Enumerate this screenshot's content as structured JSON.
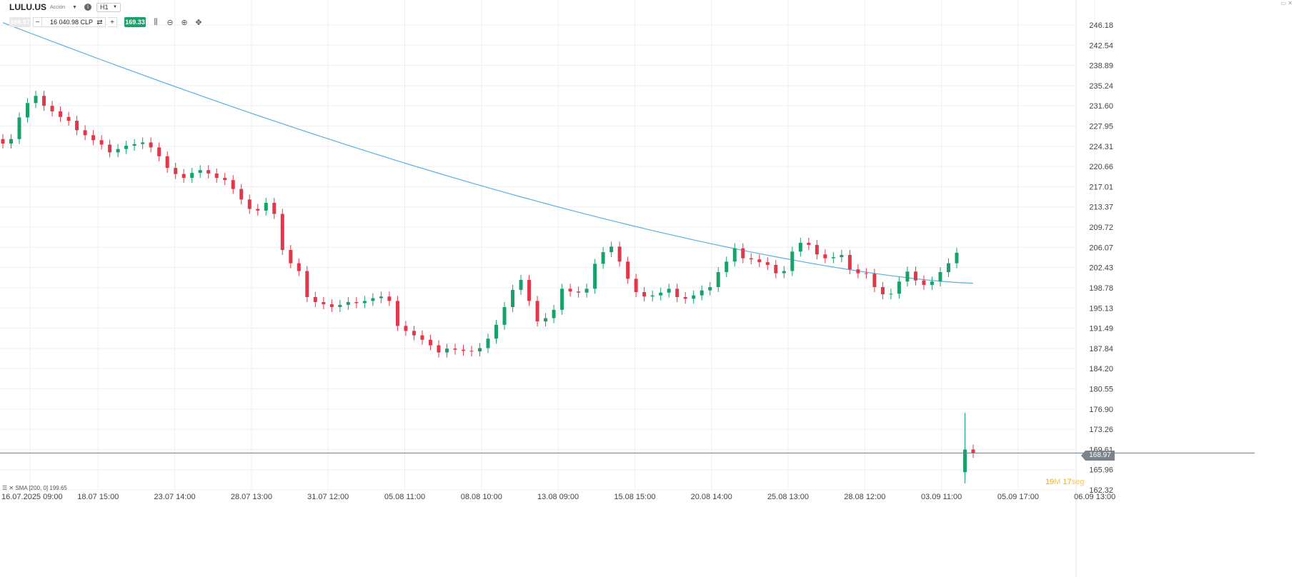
{
  "header": {
    "symbol": "LULU.US",
    "asset_type": "Acción",
    "timeframe": "H1",
    "sell_price": "168.97",
    "amount": "16 040.98 CLP",
    "buy_price": "169.33",
    "minus_label": "−",
    "plus_label": "+"
  },
  "indicator": {
    "legend": "SMA [200, 0] 199.65"
  },
  "countdown": {
    "minutes": "19",
    "minutes_unit": "M",
    "seconds": "17",
    "seconds_unit": "seg"
  },
  "current_price_tag": "168.97",
  "colors": {
    "up": "#1aa06b",
    "down": "#e0374b",
    "sma": "#5aaee0",
    "grid": "#efefef"
  },
  "icons": [
    "info-icon",
    "chevron-down-icon",
    "swap-icon",
    "candlestick-icon",
    "zoom-out-icon",
    "zoom-in-icon",
    "crosshair-icon"
  ],
  "chart_data": {
    "type": "candlestick",
    "title": "",
    "y_ticks": [
      "246.18",
      "242.54",
      "238.89",
      "235.24",
      "231.60",
      "227.95",
      "224.31",
      "220.66",
      "217.01",
      "213.37",
      "209.72",
      "206.07",
      "202.43",
      "198.78",
      "195.13",
      "191.49",
      "187.84",
      "184.20",
      "180.55",
      "176.90",
      "173.26",
      "169.61",
      "165.96",
      "162.32"
    ],
    "ylim": [
      162.32,
      246.18
    ],
    "x_ticks": [
      "16.07.2025 09:00",
      "18.07 15:00",
      "23.07 14:00",
      "28.07 13:00",
      "31.07 12:00",
      "05.08 11:00",
      "08.08 10:00",
      "13.08 09:00",
      "15.08 15:00",
      "20.08 14:00",
      "25.08 13:00",
      "28.08 12:00",
      "03.09 11:00",
      "05.09 17:00",
      "06.09 13:00"
    ],
    "last_price": 168.97,
    "close_series": [
      224.8,
      225.6,
      229.5,
      232.1,
      233.4,
      231.6,
      230.6,
      229.6,
      228.9,
      227.2,
      226.3,
      225.4,
      224.6,
      223.2,
      223.8,
      224.4,
      224.7,
      225.0,
      224.1,
      222.5,
      220.4,
      219.3,
      218.6,
      219.5,
      220.0,
      219.4,
      218.6,
      218.2,
      216.6,
      214.7,
      213.0,
      212.7,
      214.1,
      212.1,
      205.6,
      203.2,
      201.8,
      197.1,
      196.2,
      195.8,
      195.3,
      195.7,
      196.2,
      196.0,
      196.4,
      196.9,
      197.2,
      196.4,
      191.9,
      191.0,
      190.2,
      189.4,
      188.4,
      187.1,
      187.8,
      187.6,
      187.4,
      187.3,
      187.9,
      189.6,
      192.1,
      195.3,
      198.4,
      200.2,
      196.4,
      192.7,
      193.3,
      194.8,
      198.6,
      198.1,
      197.9,
      198.6,
      203.1,
      205.2,
      206.2,
      203.5,
      200.4,
      198.0,
      197.2,
      197.4,
      197.9,
      198.6,
      197.1,
      196.8,
      197.4,
      198.3,
      198.9,
      201.6,
      203.5,
      205.9,
      204.1,
      203.9,
      203.4,
      202.9,
      201.4,
      201.8,
      205.3,
      206.9,
      206.5,
      204.8,
      204.1,
      204.3,
      204.7,
      202.1,
      201.4,
      201.3,
      198.9,
      197.6,
      197.7,
      199.9,
      201.7,
      200.1,
      199.3,
      199.9,
      201.6,
      203.2,
      205.1,
      169.6,
      168.97
    ],
    "sma": {
      "name": "SMA [200, 0]",
      "value": 199.65,
      "start": 246.6,
      "end": 199.6
    }
  }
}
